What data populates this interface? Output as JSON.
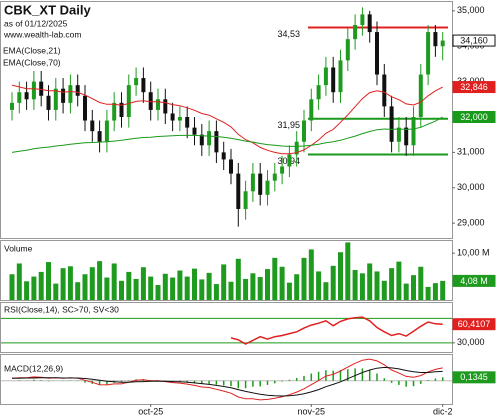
{
  "chart_data": [
    {
      "type": "candlestick",
      "title": "CBK_XT Daily",
      "subtitle": "as of 01/12/2025",
      "source": "www.wealth-lab.com",
      "open": [
        32.2,
        32.4,
        32.7,
        32.5,
        33.0,
        32.6,
        32.2,
        32.8,
        32.4,
        32.9,
        32.6,
        31.9,
        31.6,
        31.3,
        31.9,
        32.4,
        32.0,
        32.9,
        33.1,
        32.7,
        32.2,
        32.5,
        32.1,
        31.9,
        32.0,
        31.7,
        31.5,
        31.2,
        31.6,
        31.0,
        30.8,
        30.4,
        29.4,
        29.9,
        30.4,
        29.8,
        30.2,
        30.4,
        30.6,
        30.94,
        31.3,
        31.9,
        32.5,
        32.9,
        33.4,
        32.7,
        33.6,
        34.2,
        34.6,
        34.9,
        34.4,
        33.2,
        32.3,
        31.3,
        31.7,
        31.2,
        32.0,
        33.2,
        34.4,
        34.0
      ],
      "high": [
        32.7,
        33.0,
        33.0,
        33.3,
        33.3,
        32.9,
        33.1,
        33.1,
        33.2,
        33.2,
        32.9,
        32.2,
        31.9,
        32.2,
        32.7,
        32.7,
        33.2,
        33.4,
        33.4,
        33.0,
        32.8,
        32.8,
        32.4,
        32.3,
        32.3,
        32.0,
        31.8,
        31.9,
        31.9,
        31.3,
        31.1,
        30.7,
        30.2,
        30.7,
        30.7,
        30.5,
        30.7,
        30.9,
        31.2,
        31.6,
        32.2,
        32.8,
        33.2,
        33.7,
        33.7,
        33.9,
        34.5,
        34.9,
        35.1,
        35.0,
        34.7,
        33.5,
        32.6,
        32.0,
        32.0,
        32.3,
        33.5,
        34.6,
        34.6,
        34.4
      ],
      "low": [
        31.9,
        32.1,
        32.2,
        32.2,
        32.3,
        31.9,
        31.9,
        32.1,
        32.1,
        32.3,
        31.6,
        31.3,
        31.0,
        31.0,
        31.6,
        31.7,
        31.7,
        32.6,
        32.4,
        31.9,
        31.9,
        31.8,
        31.6,
        31.6,
        31.4,
        31.2,
        30.9,
        30.9,
        30.7,
        30.5,
        30.1,
        28.9,
        29.1,
        29.6,
        29.5,
        29.5,
        29.9,
        30.1,
        30.3,
        30.6,
        31.0,
        31.6,
        32.2,
        32.6,
        32.4,
        32.4,
        33.3,
        33.9,
        34.3,
        34.1,
        32.9,
        32.0,
        31.0,
        31.0,
        30.9,
        30.9,
        31.7,
        32.9,
        33.7,
        33.6
      ],
      "close": [
        32.4,
        32.7,
        32.5,
        33.0,
        32.6,
        32.2,
        32.8,
        32.4,
        32.9,
        32.6,
        31.9,
        31.6,
        31.3,
        31.9,
        32.4,
        32.0,
        32.9,
        33.1,
        32.7,
        32.2,
        32.5,
        32.1,
        31.9,
        32.0,
        31.7,
        31.5,
        31.2,
        31.6,
        31.0,
        30.8,
        30.4,
        29.4,
        29.9,
        30.4,
        29.8,
        30.2,
        30.4,
        30.6,
        30.94,
        31.3,
        31.9,
        32.5,
        32.9,
        33.4,
        32.7,
        33.6,
        34.2,
        34.6,
        34.9,
        34.4,
        33.2,
        32.3,
        31.3,
        31.7,
        31.2,
        32.0,
        33.2,
        34.4,
        34.0,
        34.16
      ],
      "close_label": "34,160",
      "up_color": "#1e9a1e",
      "down_color": "#111111",
      "series": [
        {
          "name": "EMA(Close,21)",
          "color": "#e0201f",
          "value_label": "32,846",
          "values": [
            32.9,
            32.85,
            32.8,
            32.8,
            32.78,
            32.74,
            32.74,
            32.7,
            32.72,
            32.7,
            32.62,
            32.52,
            32.41,
            32.36,
            32.36,
            32.33,
            32.38,
            32.44,
            32.46,
            32.43,
            32.43,
            32.4,
            32.35,
            32.32,
            32.26,
            32.19,
            32.1,
            32.05,
            31.95,
            31.85,
            31.72,
            31.51,
            31.36,
            31.27,
            31.14,
            31.06,
            31.0,
            30.96,
            30.96,
            30.99,
            31.07,
            31.2,
            31.35,
            31.54,
            31.65,
            31.85,
            32.06,
            32.29,
            32.52,
            32.69,
            32.74,
            32.7,
            32.57,
            32.49,
            32.37,
            32.34,
            32.42,
            32.6,
            32.74,
            32.846
          ]
        },
        {
          "name": "EMA(Close,70)",
          "color": "#1a9a1a",
          "value_label": "32,000",
          "values": [
            31.0,
            31.03,
            31.06,
            31.1,
            31.13,
            31.15,
            31.18,
            31.2,
            31.23,
            31.25,
            31.27,
            31.28,
            31.29,
            31.3,
            31.32,
            31.34,
            31.37,
            31.4,
            31.42,
            31.43,
            31.45,
            31.46,
            31.47,
            31.48,
            31.48,
            31.48,
            31.47,
            31.46,
            31.45,
            31.43,
            31.4,
            31.36,
            31.32,
            31.29,
            31.25,
            31.22,
            31.2,
            31.18,
            31.17,
            31.17,
            31.18,
            31.2,
            31.23,
            31.27,
            31.3,
            31.34,
            31.4,
            31.46,
            31.53,
            31.59,
            31.64,
            31.66,
            31.65,
            31.66,
            31.65,
            31.66,
            31.71,
            31.8,
            31.88,
            32.0
          ]
        }
      ],
      "levels": [
        {
          "value": 34.53,
          "label": "34,53",
          "color": "#e0201f"
        },
        {
          "value": 31.95,
          "label": "31,95",
          "color": "#1a9a1a"
        },
        {
          "value": 30.94,
          "label": "30,94",
          "color": "#1a9a1a"
        }
      ],
      "ylim": [
        28.58,
        35.25
      ],
      "yticks": [
        {
          "value": 29,
          "label": "29,000"
        },
        {
          "value": 30,
          "label": "30,000"
        },
        {
          "value": 31,
          "label": "31,000"
        },
        {
          "value": 32,
          "label": "32,000"
        },
        {
          "value": 33,
          "label": "33,000"
        },
        {
          "value": 34,
          "label": "34,000"
        },
        {
          "value": 35,
          "label": "35,000"
        }
      ]
    },
    {
      "type": "bar",
      "title": "Volume",
      "color": "#1e9a1e",
      "value_label": "4,08 M",
      "values": [
        5.5,
        7.8,
        4.0,
        5.0,
        6.0,
        8.1,
        3.5,
        6.8,
        7.2,
        3.8,
        5.5,
        7.0,
        8.3,
        4.8,
        7.8,
        4.1,
        6.0,
        4.5,
        7.0,
        5.0,
        3.2,
        5.6,
        4.8,
        6.3,
        5.0,
        6.7,
        4.4,
        5.8,
        3.4,
        7.6,
        3.9,
        8.8,
        4.5,
        5.7,
        4.9,
        6.6,
        9.0,
        7.1,
        3.7,
        5.5,
        9.0,
        10.8,
        6.1,
        3.8,
        7.3,
        10.2,
        12.3,
        6.4,
        5.7,
        7.8,
        6.1,
        4.1,
        6.8,
        8.2,
        3.5,
        5.3,
        7.1,
        2.8,
        3.6,
        4.08
      ],
      "ylim": [
        0,
        12.6
      ],
      "yticks": [
        {
          "value": 10,
          "label": "10,00 M"
        }
      ]
    },
    {
      "type": "line",
      "title": "RSI(Close,14), SC>70, SV<30",
      "color": "#e0201f",
      "value_label": "60,4107",
      "values": [
        null,
        null,
        null,
        null,
        null,
        null,
        null,
        null,
        null,
        null,
        null,
        null,
        null,
        null,
        null,
        null,
        null,
        null,
        null,
        null,
        null,
        null,
        null,
        null,
        null,
        null,
        null,
        null,
        null,
        null,
        38,
        35,
        28,
        34,
        40,
        36,
        40,
        42,
        45,
        48,
        54,
        59,
        62,
        66,
        58,
        65,
        69,
        71,
        72,
        66,
        55,
        48,
        42,
        45,
        41,
        49,
        57,
        64,
        61,
        60.4107
      ],
      "levels": [
        70,
        30
      ],
      "level_color": "#1a9a1a",
      "ylim": [
        15,
        95
      ],
      "yticks": [
        {
          "value": 30,
          "label": "30,000"
        }
      ]
    },
    {
      "type": "macd",
      "title": "MACD(12,26,9)",
      "macd_color": "#e0201f",
      "signal_color": "#111111",
      "histogram_color": "#1e9a1e",
      "value_label": "0,1345",
      "macd": [
        0.1,
        0.12,
        0.12,
        0.15,
        0.14,
        0.1,
        0.12,
        0.1,
        0.12,
        0.1,
        0.02,
        -0.06,
        -0.15,
        -0.16,
        -0.12,
        -0.12,
        -0.05,
        0.02,
        0.04,
        0.0,
        0.0,
        -0.03,
        -0.07,
        -0.09,
        -0.13,
        -0.18,
        -0.24,
        -0.26,
        -0.33,
        -0.4,
        -0.48,
        -0.63,
        -0.7,
        -0.7,
        -0.74,
        -0.72,
        -0.68,
        -0.62,
        -0.54,
        -0.44,
        -0.31,
        -0.15,
        0.01,
        0.18,
        0.25,
        0.38,
        0.53,
        0.68,
        0.8,
        0.84,
        0.77,
        0.62,
        0.42,
        0.3,
        0.17,
        0.14,
        0.2,
        0.35,
        0.44,
        0.5
      ],
      "signal": [
        0.1,
        0.1,
        0.11,
        0.11,
        0.12,
        0.12,
        0.12,
        0.11,
        0.11,
        0.11,
        0.09,
        0.06,
        0.02,
        -0.02,
        -0.04,
        -0.06,
        -0.06,
        -0.04,
        -0.03,
        -0.02,
        -0.02,
        -0.02,
        -0.03,
        -0.04,
        -0.06,
        -0.08,
        -0.11,
        -0.14,
        -0.18,
        -0.22,
        -0.27,
        -0.34,
        -0.41,
        -0.47,
        -0.52,
        -0.56,
        -0.58,
        -0.59,
        -0.58,
        -0.55,
        -0.5,
        -0.43,
        -0.34,
        -0.23,
        -0.14,
        -0.04,
        0.08,
        0.2,
        0.32,
        0.42,
        0.49,
        0.52,
        0.5,
        0.46,
        0.4,
        0.35,
        0.32,
        0.32,
        0.35,
        0.3655
      ],
      "histogram": [
        0,
        0.02,
        0.01,
        0.04,
        0.02,
        -0.02,
        0,
        -0.01,
        0.01,
        -0.01,
        -0.07,
        -0.12,
        -0.17,
        -0.14,
        -0.08,
        -0.06,
        0.01,
        0.06,
        0.07,
        0.02,
        0.02,
        -0.01,
        -0.04,
        -0.05,
        -0.07,
        -0.1,
        -0.13,
        -0.12,
        -0.15,
        -0.18,
        -0.21,
        -0.29,
        -0.29,
        -0.23,
        -0.22,
        -0.16,
        -0.1,
        -0.03,
        0.04,
        0.11,
        0.19,
        0.28,
        0.35,
        0.41,
        0.39,
        0.42,
        0.45,
        0.48,
        0.48,
        0.42,
        0.28,
        0.1,
        -0.08,
        -0.16,
        -0.23,
        -0.21,
        -0.12,
        0.03,
        0.09,
        0.1345
      ],
      "ylim": [
        -0.9,
        1.0
      ],
      "xticks": [
        {
          "value": 19,
          "label": "oct-25"
        },
        {
          "value": 41,
          "label": "nov-25"
        },
        {
          "value": 59,
          "label": "dic-2"
        }
      ]
    }
  ]
}
